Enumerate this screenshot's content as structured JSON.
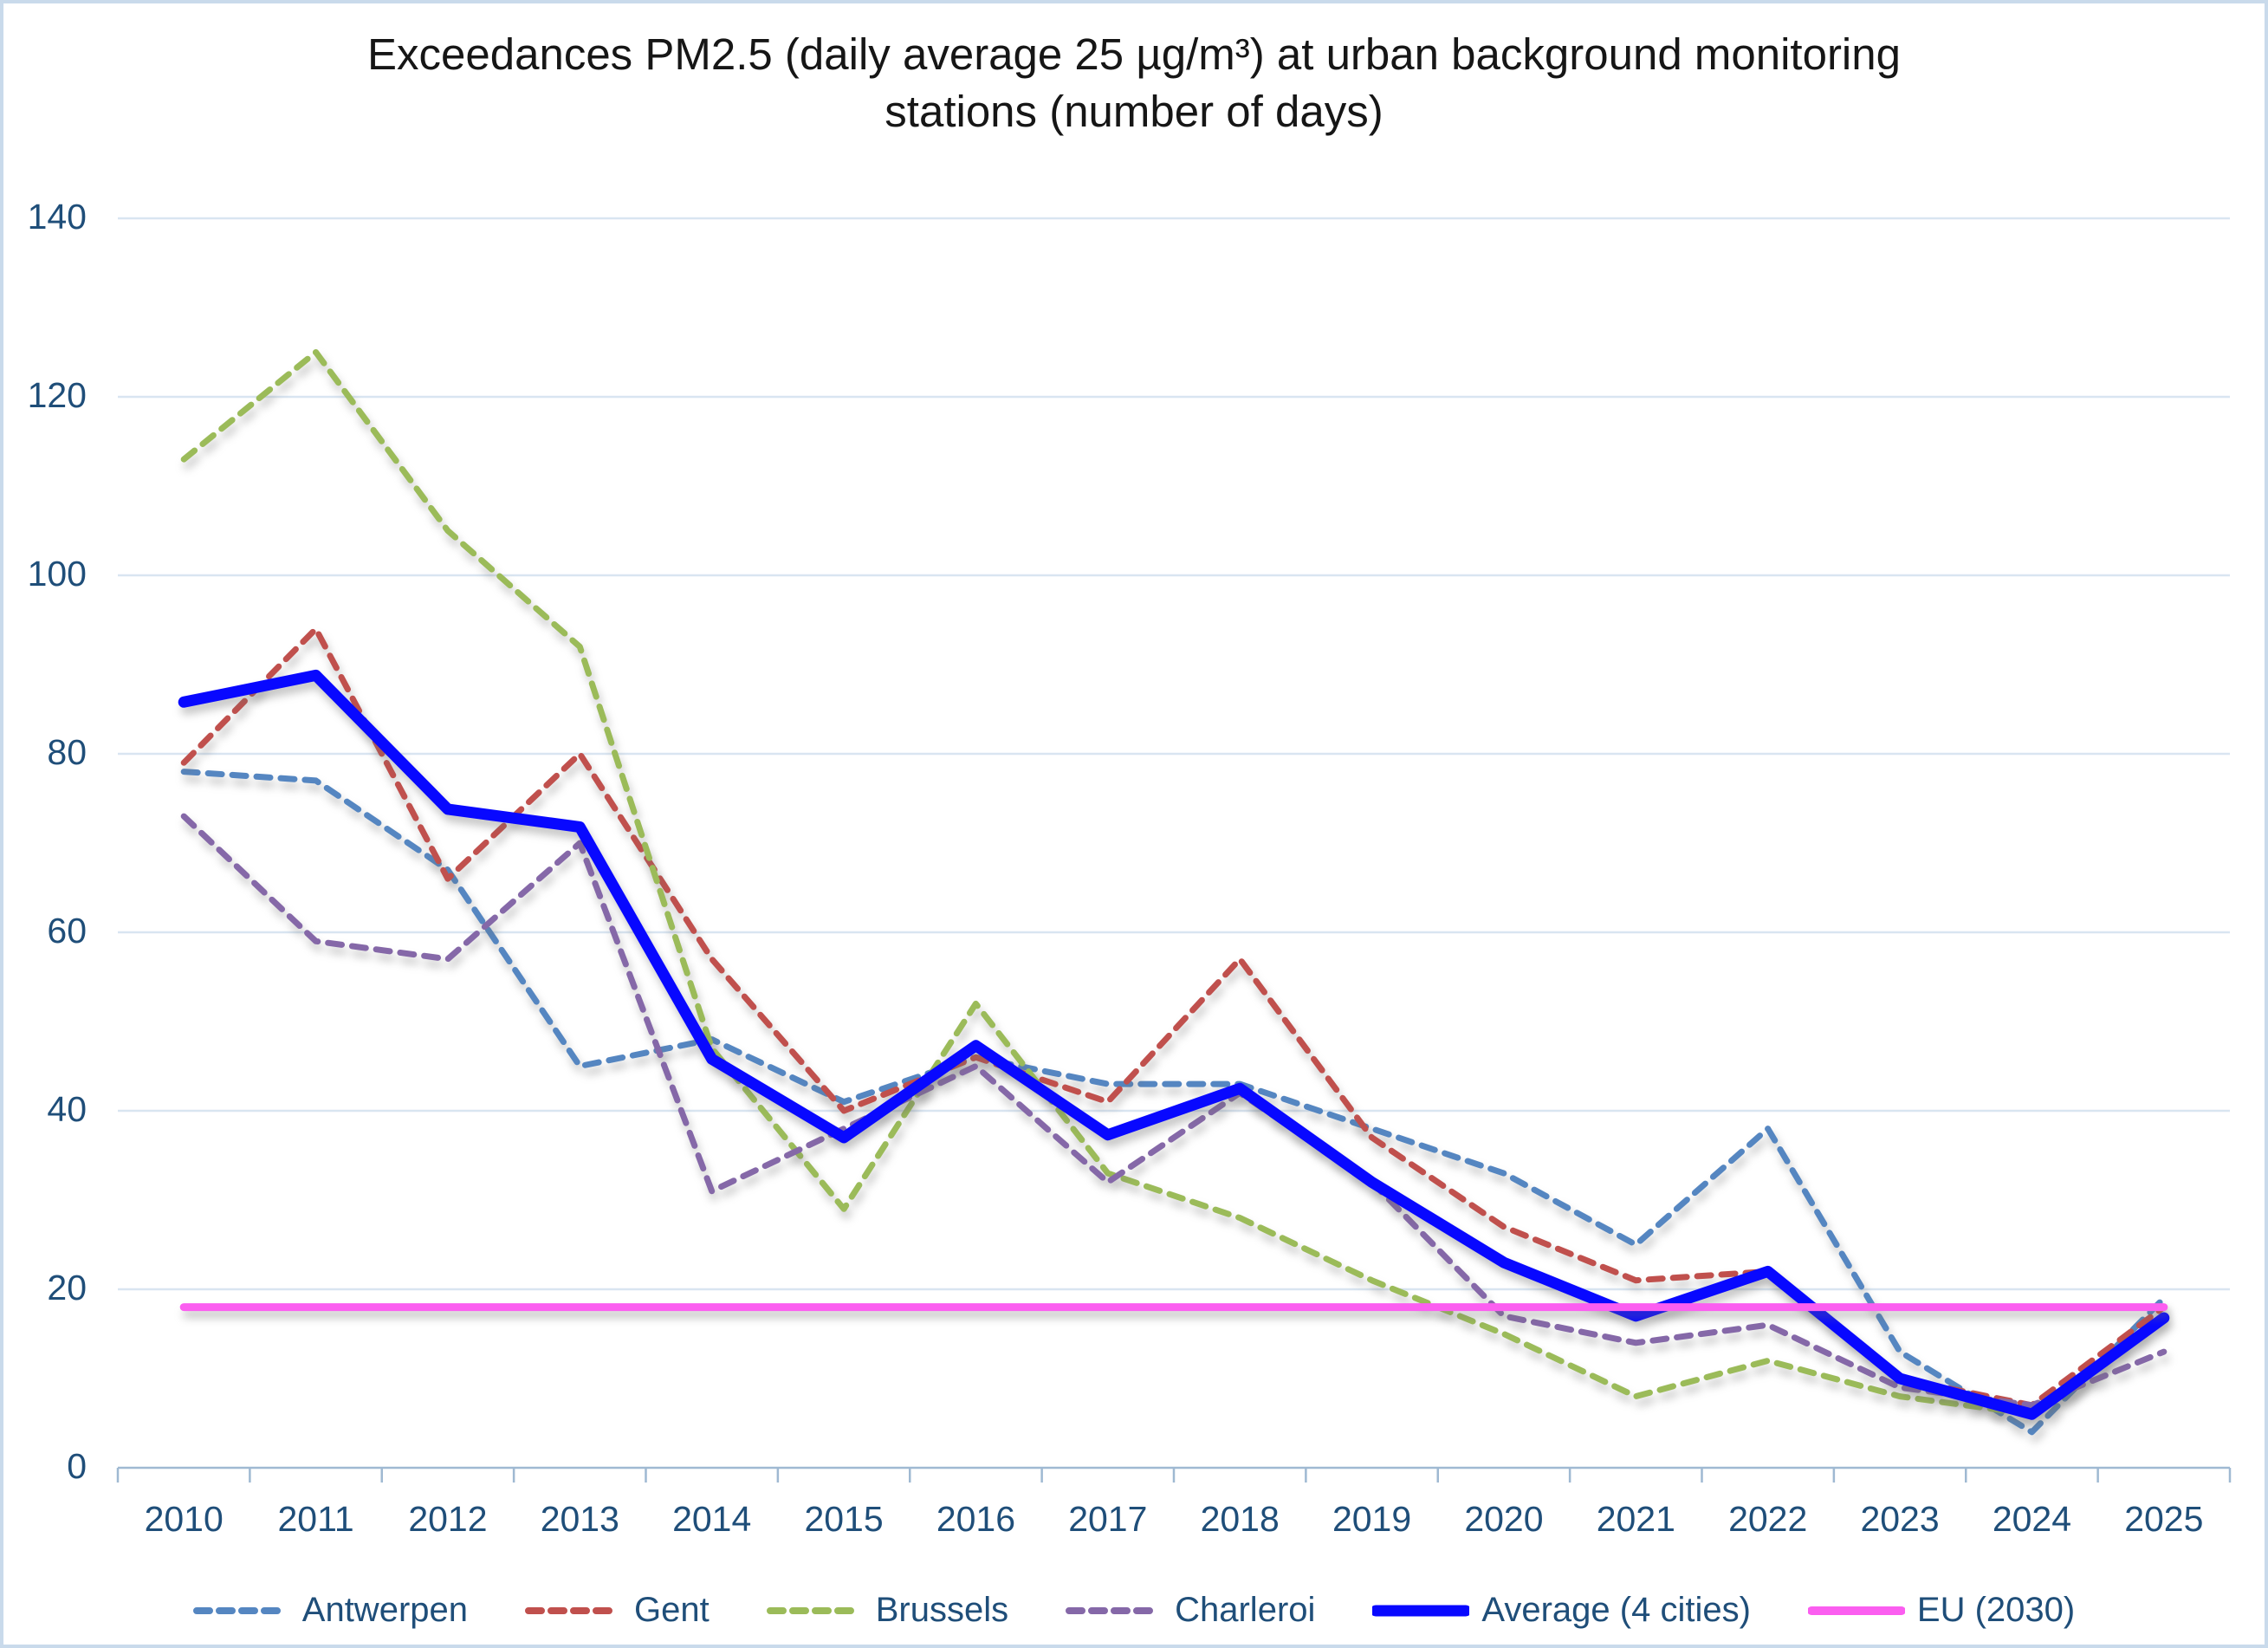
{
  "page": {
    "background": "#FFFFFF",
    "border_color": "#C9DAEB"
  },
  "chart_data": {
    "type": "line",
    "title": "Exceedances PM2.5 (daily average 25 µg/m³) at urban background monitoring stations (number of days)",
    "title_line1": "Exceedances PM2.5 (daily average 25 µg/m³) at urban background monitoring",
    "title_line2": "stations (number of days)",
    "xlabel": "",
    "ylabel": "",
    "ylim": [
      0,
      140
    ],
    "y_ticks": [
      0,
      20,
      40,
      60,
      80,
      100,
      120,
      140
    ],
    "grid": true,
    "legend_position": "bottom",
    "gridline_color": "#D9E5F1",
    "axis_color": "#9FB9D2",
    "label_color": "#1F4E79",
    "title_color": "#161616",
    "categories": [
      "2010",
      "2011",
      "2012",
      "2013",
      "2014",
      "2015",
      "2016",
      "2017",
      "2018",
      "2019",
      "2020",
      "2021",
      "2022",
      "2023",
      "2024",
      "2025"
    ],
    "series": [
      {
        "name": "Antwerpen",
        "color": "#5586C1",
        "dash": "dashed",
        "width": 7,
        "values": [
          78,
          77,
          67,
          45,
          48,
          41,
          46,
          43,
          43,
          38,
          33,
          25,
          38,
          13,
          4,
          19
        ]
      },
      {
        "name": "Gent",
        "color": "#C0504D",
        "dash": "dashed",
        "width": 7,
        "values": [
          79,
          94,
          66,
          80,
          57,
          40,
          46,
          41,
          57,
          37,
          27,
          21,
          22,
          10,
          7,
          18
        ]
      },
      {
        "name": "Brussels",
        "color": "#9BBB59",
        "dash": "dashed",
        "width": 7,
        "values": [
          113,
          125,
          105,
          92,
          47,
          29,
          52,
          33,
          28,
          21,
          15,
          8,
          12,
          8,
          6,
          17
        ]
      },
      {
        "name": "Charleroi",
        "color": "#8568A8",
        "dash": "dashed",
        "width": 7,
        "values": [
          73,
          59,
          57,
          70,
          31,
          38,
          45,
          32,
          42,
          32,
          17,
          14,
          16,
          9,
          7,
          13
        ]
      },
      {
        "name": "Average (4 cities)",
        "color": "#0808FF",
        "dash": "solid",
        "width": 13,
        "values": [
          85.8,
          88.8,
          73.8,
          71.8,
          45.8,
          37,
          47.3,
          37.3,
          42.5,
          32,
          23,
          17,
          22,
          10,
          6,
          16.8
        ]
      },
      {
        "name": "EU (2030)",
        "color": "#FB5EF0",
        "dash": "solid",
        "width": 9,
        "values": [
          18,
          18,
          18,
          18,
          18,
          18,
          18,
          18,
          18,
          18,
          18,
          18,
          18,
          18,
          18,
          18
        ]
      }
    ]
  }
}
